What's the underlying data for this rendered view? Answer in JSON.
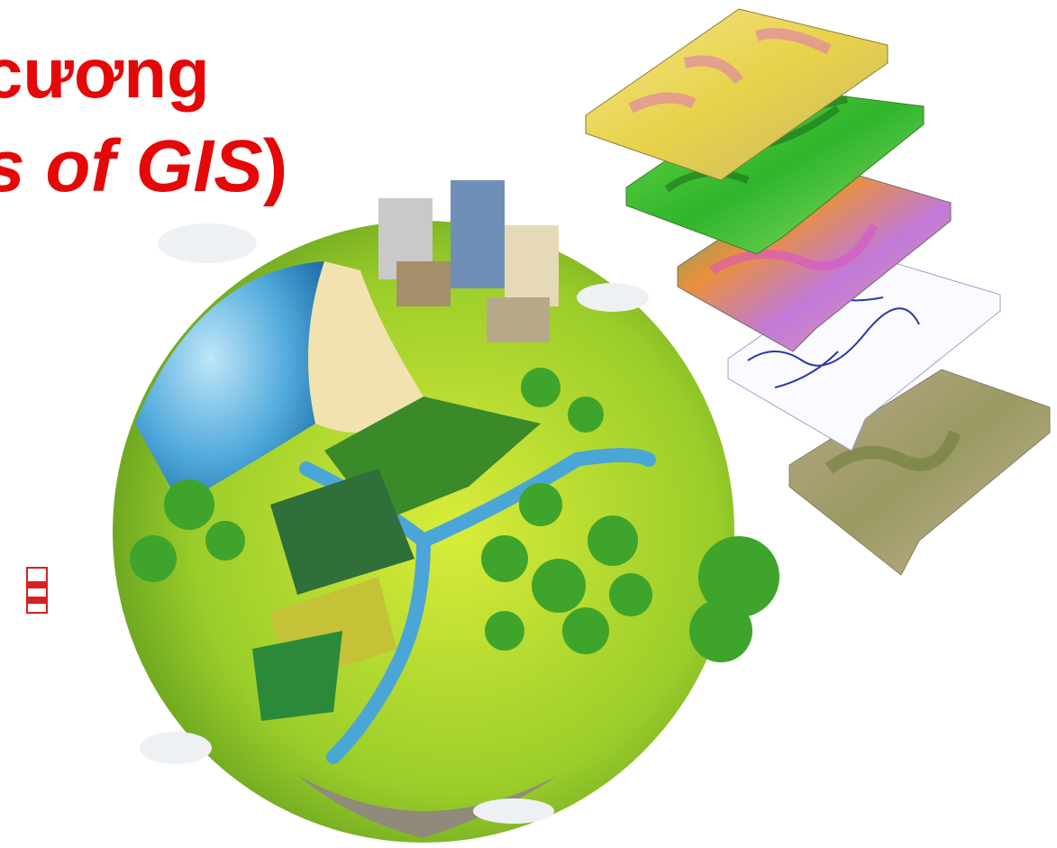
{
  "slide": {
    "title_line1": "cương",
    "title_line2_italic": "s of GIS",
    "title_line2_close": ")",
    "title_color": "#e40808"
  }
}
